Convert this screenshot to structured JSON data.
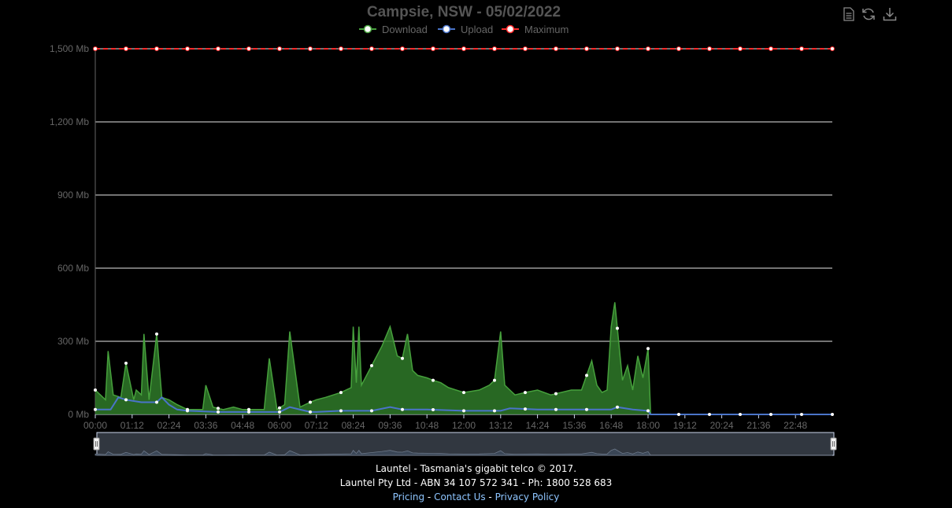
{
  "chart_data": {
    "type": "area",
    "title": "Campsie, NSW - 05/02/2022",
    "xlabel": "",
    "ylabel": "",
    "y_unit": "Mb",
    "ylim": [
      0,
      1500
    ],
    "y_ticks": [
      "0 Mb",
      "300 Mb",
      "600 Mb",
      "900 Mb",
      "1,200 Mb",
      "1,500 Mb"
    ],
    "x_range": [
      "00:00",
      "24:00"
    ],
    "x_ticks": [
      "00:00",
      "01:12",
      "02:24",
      "03:36",
      "04:48",
      "06:00",
      "07:12",
      "08:24",
      "09:36",
      "10:48",
      "12:00",
      "13:12",
      "14:24",
      "15:36",
      "16:48",
      "18:00",
      "19:12",
      "20:24",
      "21:36",
      "22:48"
    ],
    "grid": true,
    "legend_position": "top-center",
    "series": [
      {
        "name": "Download",
        "color": "#46a03c",
        "x": [
          "00:00",
          "00:20",
          "00:25",
          "00:35",
          "00:50",
          "01:00",
          "01:15",
          "01:20",
          "01:30",
          "01:35",
          "01:45",
          "02:00",
          "02:10",
          "02:24",
          "02:40",
          "03:00",
          "03:30",
          "03:36",
          "03:50",
          "04:10",
          "04:30",
          "04:48",
          "05:10",
          "05:30",
          "05:40",
          "05:55",
          "06:10",
          "06:20",
          "06:40",
          "07:00",
          "07:12",
          "07:30",
          "08:00",
          "08:20",
          "08:24",
          "08:30",
          "08:35",
          "08:40",
          "09:00",
          "09:20",
          "09:36",
          "09:50",
          "10:00",
          "10:10",
          "10:20",
          "10:30",
          "10:48",
          "11:00",
          "11:15",
          "11:30",
          "12:00",
          "12:30",
          "12:50",
          "13:00",
          "13:12",
          "13:20",
          "13:30",
          "13:40",
          "14:00",
          "14:24",
          "14:50",
          "15:10",
          "15:30",
          "15:36",
          "15:50",
          "16:10",
          "16:20",
          "16:30",
          "16:40",
          "16:48",
          "16:55",
          "17:10",
          "17:20",
          "17:30",
          "17:40",
          "17:50",
          "18:00",
          "18:05",
          "19:12",
          "20:24",
          "21:36",
          "22:48",
          "24:00"
        ],
        "values": [
          100,
          60,
          260,
          80,
          70,
          210,
          60,
          100,
          80,
          330,
          60,
          330,
          70,
          60,
          40,
          20,
          20,
          120,
          30,
          20,
          30,
          20,
          20,
          20,
          230,
          20,
          40,
          340,
          30,
          50,
          60,
          70,
          90,
          110,
          360,
          130,
          360,
          120,
          200,
          280,
          360,
          240,
          230,
          330,
          180,
          160,
          150,
          140,
          130,
          110,
          90,
          100,
          120,
          140,
          340,
          120,
          100,
          80,
          90,
          100,
          80,
          90,
          100,
          100,
          100,
          220,
          120,
          90,
          100,
          360,
          460,
          140,
          200,
          100,
          240,
          150,
          270,
          0,
          0,
          0,
          0,
          0,
          0
        ]
      },
      {
        "name": "Upload",
        "color": "#4a74c9",
        "x": [
          "00:00",
          "00:30",
          "00:45",
          "01:00",
          "01:30",
          "02:00",
          "02:10",
          "02:24",
          "02:40",
          "03:00",
          "04:00",
          "04:48",
          "05:30",
          "06:00",
          "06:20",
          "07:00",
          "07:12",
          "08:00",
          "08:24",
          "09:00",
          "09:36",
          "10:00",
          "10:48",
          "12:00",
          "13:00",
          "13:12",
          "13:30",
          "14:24",
          "15:30",
          "16:00",
          "16:48",
          "17:00",
          "17:30",
          "18:00",
          "18:05",
          "19:12",
          "20:24",
          "21:36",
          "22:48",
          "24:00"
        ],
        "values": [
          20,
          20,
          70,
          60,
          50,
          50,
          70,
          40,
          20,
          15,
          10,
          10,
          10,
          10,
          30,
          10,
          10,
          15,
          15,
          15,
          30,
          20,
          20,
          15,
          15,
          15,
          25,
          20,
          20,
          20,
          20,
          30,
          20,
          15,
          0,
          0,
          0,
          0,
          0,
          0
        ]
      },
      {
        "name": "Maximum",
        "color": "#ff2a2a",
        "x": [
          "00:00",
          "24:00"
        ],
        "values": [
          1500,
          1500
        ]
      }
    ]
  },
  "footer": {
    "line1": "Launtel - Tasmania's gigabit telco © 2017.",
    "line2": "Launtel Pty Ltd - ABN 34 107 572 341 - Ph: 1800 528 683",
    "links": [
      "Pricing",
      "Contact Us",
      "Privacy Policy"
    ],
    "separator": " - "
  },
  "toolbar": {
    "icons": [
      "document-icon",
      "refresh-icon",
      "download-icon"
    ]
  }
}
